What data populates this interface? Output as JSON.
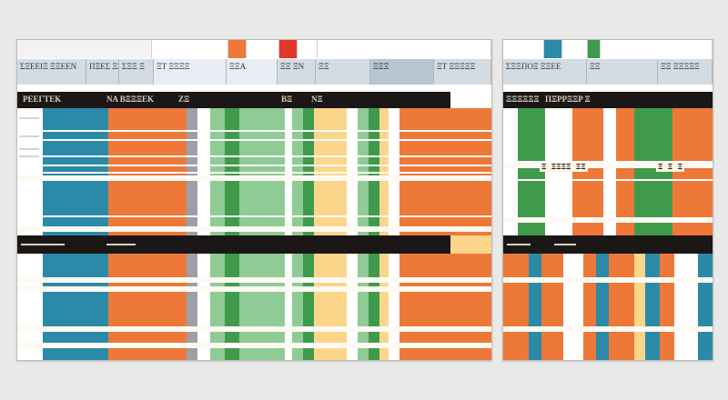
{
  "colors": {
    "teal": "#2c8aa9",
    "orange": "#ee7838",
    "green": "#3f9b4b",
    "light_green": "#8fcb94",
    "yellow": "#fbd58a",
    "gray": "#9ba0a8",
    "blue_light": "#6aafd6",
    "dark_band": "#1b1717",
    "red": "#e0372b"
  },
  "left": {
    "ribbon_labels": [
      "ΣΞΕΕΙΞ ΞΞΕΕΝ",
      "ΠΞΕΣ ΞΞΕΕ",
      "ΣΞΞ Ξ",
      "ΞΤ ΞΞΞΞ",
      "ΞΞΑ",
      "ΞΞ ΞΝ",
      "ΞΞ",
      "ΞΞΞ",
      "ΞΤ ΞΞΞΞΞ"
    ],
    "header_labels": [
      "ΡΕΕΓΤΕΚ",
      "ΝΑ ΒΞΞΞΕΚ",
      "ΖΞ",
      "ΒΞ",
      "ΝΞ"
    ],
    "dark_label": "ΞΞΞΞΞ"
  },
  "right": {
    "ribbon_labels": [
      "ΣΞΞΠΟΞ ΞΞΕΕ",
      "ΞΞ",
      "ΞΞ ΞΞΞΞΞ"
    ],
    "header_labels": [
      "ΞΞΞΞΞΞ",
      "ΠΞΡΡΞΞΡ Ξ"
    ],
    "summary_left": "Ξ ΞΞΞΞ ΞΞ",
    "summary_right": "Ξ Ξ Ξ"
  }
}
